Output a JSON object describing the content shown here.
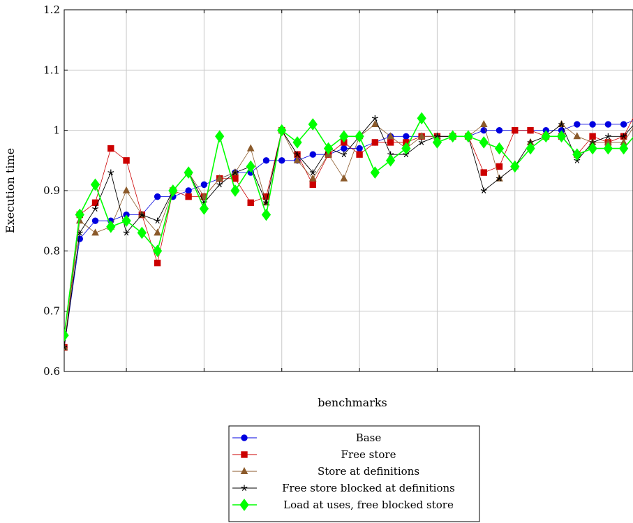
{
  "chart_data": {
    "type": "line",
    "title": "",
    "xlabel": "benchmarks",
    "ylabel": "Execution time",
    "ylim": [
      0.6,
      1.2
    ],
    "yticks": [
      "0.6",
      "0.7",
      "0.8",
      "0.9",
      "1",
      "1.1",
      "1.2"
    ],
    "xlim": [
      0,
      36.6
    ],
    "grid": true,
    "legend_position": "bottom-center",
    "x": [
      0,
      1,
      2,
      3,
      4,
      5,
      6,
      7,
      8,
      9,
      10,
      11,
      12,
      13,
      14,
      15,
      16,
      17,
      18,
      19,
      20,
      21,
      22,
      23,
      24,
      25,
      26,
      27,
      28,
      29,
      30,
      31,
      32,
      33,
      34,
      35,
      36,
      37
    ],
    "series": [
      {
        "name": "Base",
        "color": "#0000e0",
        "marker": "circle",
        "values": [
          0.64,
          0.82,
          0.85,
          0.85,
          0.86,
          0.86,
          0.89,
          0.89,
          0.9,
          0.91,
          0.92,
          0.93,
          0.93,
          0.95,
          0.95,
          0.95,
          0.96,
          0.96,
          0.97,
          0.97,
          0.98,
          0.99,
          0.99,
          0.99,
          0.99,
          0.99,
          0.99,
          1.0,
          1.0,
          1.0,
          1.0,
          1.0,
          1.0,
          1.01,
          1.01,
          1.01,
          1.01,
          1.02
        ]
      },
      {
        "name": "Free store",
        "color": "#cc0000",
        "marker": "square",
        "values": [
          0.64,
          0.86,
          0.88,
          0.97,
          0.95,
          0.86,
          0.78,
          0.9,
          0.89,
          0.89,
          0.92,
          0.92,
          0.88,
          0.89,
          1.0,
          0.96,
          0.91,
          0.96,
          0.98,
          0.96,
          0.98,
          0.98,
          0.98,
          0.99,
          0.99,
          0.99,
          0.99,
          0.93,
          0.94,
          1.0,
          1.0,
          0.99,
          0.99,
          0.96,
          0.99,
          0.98,
          0.99,
          1.04
        ]
      },
      {
        "name": "Store at definitions",
        "color": "#8b5a2b",
        "marker": "triangle",
        "values": [
          0.64,
          0.85,
          0.83,
          0.84,
          0.9,
          0.86,
          0.83,
          0.9,
          0.93,
          0.89,
          0.92,
          0.93,
          0.97,
          0.88,
          1.0,
          0.95,
          0.92,
          0.96,
          0.92,
          0.99,
          1.01,
          0.99,
          0.97,
          0.99,
          0.99,
          0.99,
          0.99,
          1.01,
          0.92,
          0.94,
          0.98,
          0.99,
          1.01,
          0.99,
          0.98,
          0.98,
          0.98,
          1.02
        ]
      },
      {
        "name": "Free store blocked at definitions",
        "color": "#000000",
        "marker": "star",
        "values": [
          0.64,
          0.83,
          0.87,
          0.93,
          0.83,
          0.86,
          0.85,
          0.9,
          0.93,
          0.88,
          0.91,
          0.93,
          0.94,
          0.88,
          1.0,
          0.96,
          0.93,
          0.97,
          0.96,
          0.99,
          1.02,
          0.96,
          0.96,
          0.98,
          0.99,
          0.99,
          0.99,
          0.9,
          0.92,
          0.94,
          0.98,
          0.99,
          1.01,
          0.95,
          0.98,
          0.99,
          0.99,
          1.02
        ]
      },
      {
        "name": "Load at uses, free blocked store",
        "color": "#00ff00",
        "marker": "diamond",
        "values": [
          0.66,
          0.86,
          0.91,
          0.84,
          0.85,
          0.83,
          0.8,
          0.9,
          0.93,
          0.87,
          0.99,
          0.9,
          0.94,
          0.86,
          1.0,
          0.98,
          1.01,
          0.97,
          0.99,
          0.99,
          0.93,
          0.95,
          0.97,
          1.02,
          0.98,
          0.99,
          0.99,
          0.98,
          0.97,
          0.94,
          0.97,
          0.99,
          0.99,
          0.96,
          0.97,
          0.97,
          0.97,
          1.0
        ]
      }
    ]
  }
}
